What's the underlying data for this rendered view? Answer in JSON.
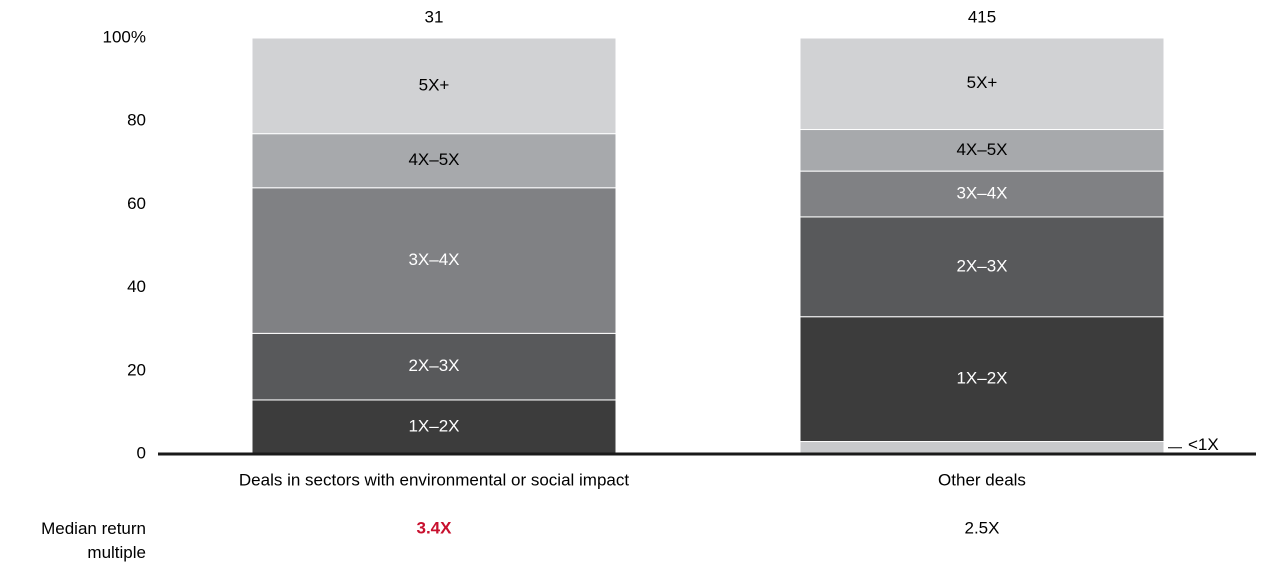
{
  "chart_data": {
    "type": "stacked_bar_100",
    "categories": [
      "Deals in sectors with environmental or social impact",
      "Other deals"
    ],
    "totals": [
      31,
      415
    ],
    "series": [
      {
        "name": "<1X",
        "color": "#c8c9cb",
        "values": [
          0,
          3
        ]
      },
      {
        "name": "1X–2X",
        "color": "#3c3c3c",
        "values": [
          13,
          30
        ]
      },
      {
        "name": "2X–3X",
        "color": "#58595b",
        "values": [
          16,
          24
        ]
      },
      {
        "name": "3X–4X",
        "color": "#808184",
        "values": [
          35,
          11
        ]
      },
      {
        "name": "4X–5X",
        "color": "#a7a9ac",
        "values": [
          13,
          10
        ]
      },
      {
        "name": "5X+",
        "color": "#d1d2d4",
        "values": [
          23,
          22
        ]
      }
    ],
    "ylim": [
      0,
      100
    ],
    "yticks": [
      0,
      20,
      40,
      60,
      80,
      {
        "value": 100,
        "label": "100%"
      }
    ],
    "median": {
      "label": "Median return multiple",
      "values": [
        {
          "text": "3.4X",
          "color": "#c8102e",
          "bold": true
        },
        {
          "text": "2.5X",
          "color": "#000000",
          "bold": false
        }
      ]
    }
  }
}
